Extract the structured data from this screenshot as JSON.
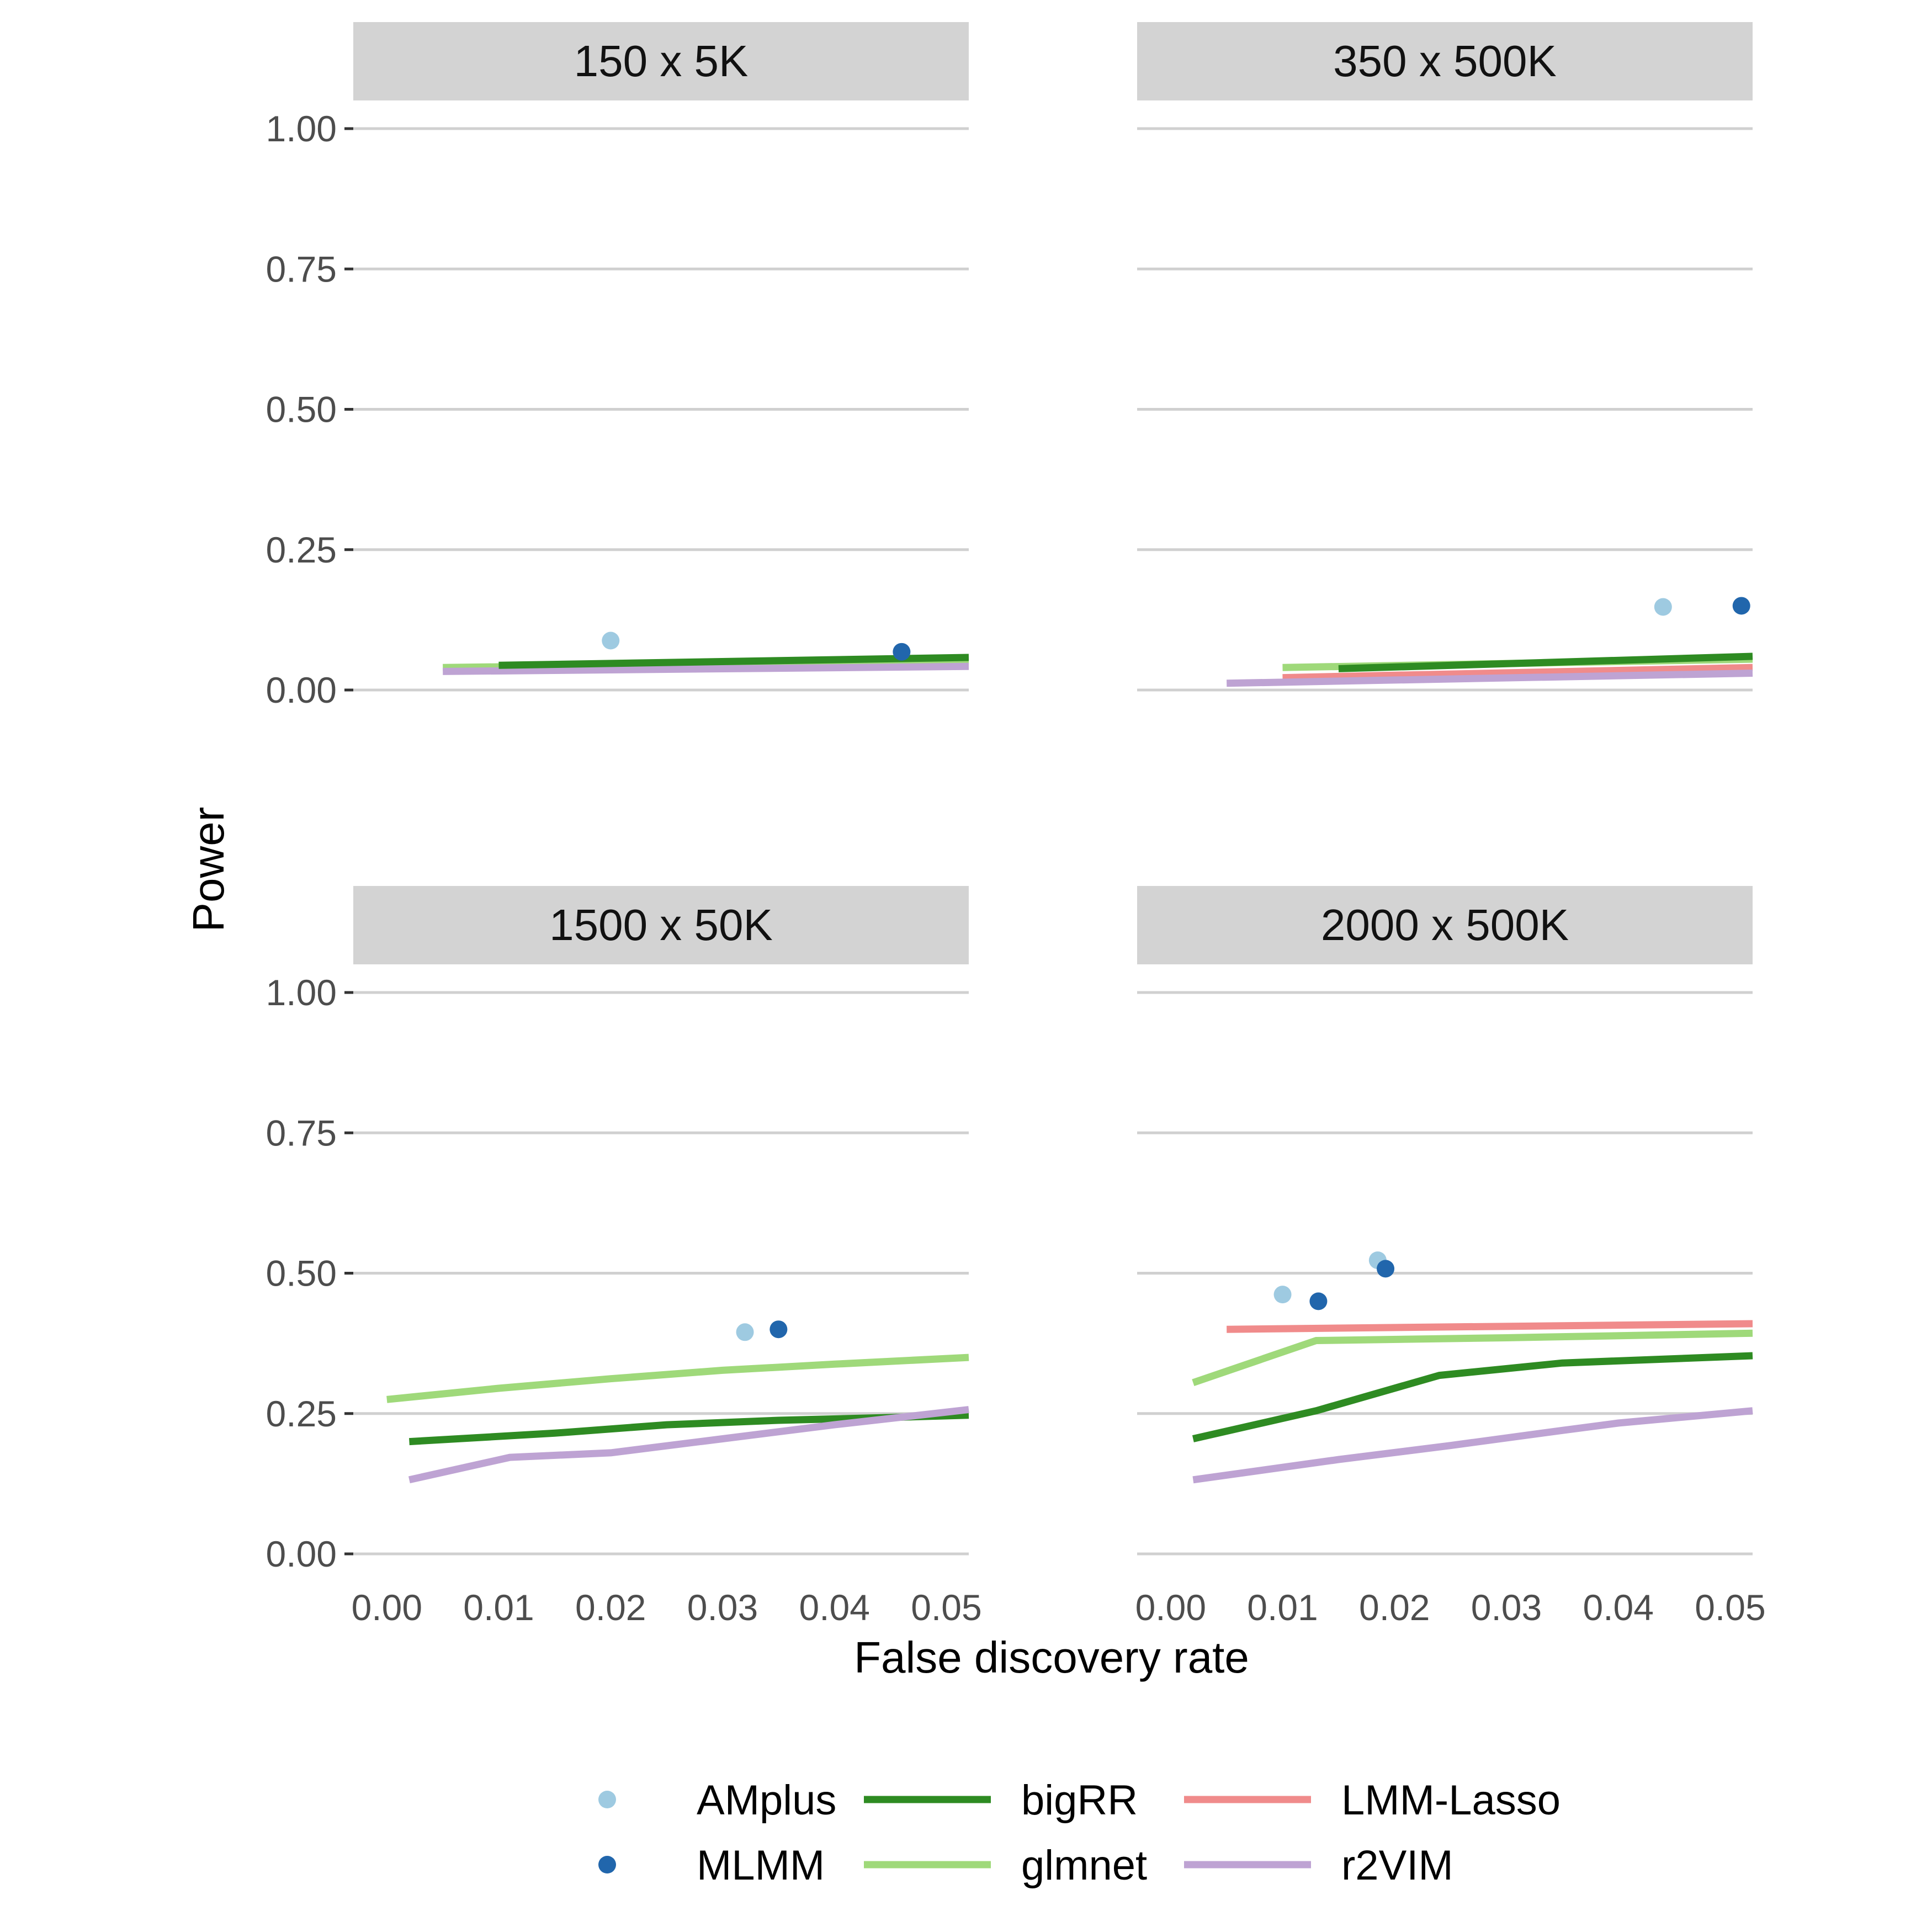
{
  "figure": {
    "ylabel": "Power",
    "xlabel": "False discovery rate"
  },
  "chart_data": {
    "type": "line",
    "xlim": [
      -0.003,
      0.052
    ],
    "ylim": [
      -0.05,
      1.05
    ],
    "x_ticks": [
      0.0,
      0.01,
      0.02,
      0.03,
      0.04,
      0.05
    ],
    "x_tick_labels": [
      "0.00",
      "0.01",
      "0.02",
      "0.03",
      "0.04",
      "0.05"
    ],
    "y_ticks": [
      0.0,
      0.25,
      0.5,
      0.75,
      1.0
    ],
    "y_tick_labels": [
      "0.00",
      "0.25",
      "0.50",
      "0.75",
      "1.00"
    ],
    "grid": true,
    "legend_position": "bottom",
    "colors": {
      "AMplus": "#9ecae1",
      "MLMM": "#2166ac",
      "bigRR": "#2e8b22",
      "glmnet": "#9fd97a",
      "LMM-Lasso": "#f08b8b",
      "r2VIM": "#bea3d3"
    },
    "legend": [
      {
        "name": "AMplus",
        "kind": "point"
      },
      {
        "name": "MLMM",
        "kind": "point"
      },
      {
        "name": "bigRR",
        "kind": "line"
      },
      {
        "name": "glmnet",
        "kind": "line"
      },
      {
        "name": "LMM-Lasso",
        "kind": "line"
      },
      {
        "name": "r2VIM",
        "kind": "line"
      }
    ],
    "panels": [
      {
        "title": "150 x 5K",
        "series": [
          {
            "name": "glmnet",
            "x": [
              0.005,
              0.052
            ],
            "y": [
              0.04,
              0.052
            ]
          },
          {
            "name": "r2VIM",
            "x": [
              0.005,
              0.052
            ],
            "y": [
              0.033,
              0.042
            ]
          },
          {
            "name": "bigRR",
            "x": [
              0.01,
              0.052
            ],
            "y": [
              0.044,
              0.058
            ]
          }
        ],
        "points": [
          {
            "name": "AMplus",
            "x": 0.02,
            "y": 0.088
          },
          {
            "name": "MLMM",
            "x": 0.046,
            "y": 0.068
          }
        ]
      },
      {
        "title": "350 x 500K",
        "series": [
          {
            "name": "glmnet",
            "x": [
              0.01,
              0.052
            ],
            "y": [
              0.04,
              0.055
            ]
          },
          {
            "name": "LMM-Lasso",
            "x": [
              0.01,
              0.052
            ],
            "y": [
              0.022,
              0.04
            ]
          },
          {
            "name": "r2VIM",
            "x": [
              0.005,
              0.052
            ],
            "y": [
              0.012,
              0.03
            ]
          },
          {
            "name": "bigRR",
            "x": [
              0.015,
              0.052
            ],
            "y": [
              0.038,
              0.06
            ]
          }
        ],
        "points": [
          {
            "name": "AMplus",
            "x": 0.044,
            "y": 0.148
          },
          {
            "name": "MLMM",
            "x": 0.051,
            "y": 0.15
          }
        ]
      },
      {
        "title": "1500 x 50K",
        "series": [
          {
            "name": "glmnet",
            "x": [
              0.0,
              0.01,
              0.02,
              0.03,
              0.04,
              0.052
            ],
            "y": [
              0.275,
              0.295,
              0.312,
              0.327,
              0.338,
              0.35
            ]
          },
          {
            "name": "bigRR",
            "x": [
              0.002,
              0.015,
              0.025,
              0.035,
              0.045,
              0.052
            ],
            "y": [
              0.2,
              0.215,
              0.23,
              0.238,
              0.243,
              0.247
            ]
          },
          {
            "name": "r2VIM",
            "x": [
              0.002,
              0.011,
              0.02,
              0.03,
              0.04,
              0.052
            ],
            "y": [
              0.132,
              0.172,
              0.18,
              0.205,
              0.23,
              0.257
            ]
          }
        ],
        "points": [
          {
            "name": "AMplus",
            "x": 0.032,
            "y": 0.395
          },
          {
            "name": "MLMM",
            "x": 0.035,
            "y": 0.4
          }
        ]
      },
      {
        "title": "2000 x 500K",
        "series": [
          {
            "name": "LMM-Lasso",
            "x": [
              0.005,
              0.052
            ],
            "y": [
              0.4,
              0.41
            ]
          },
          {
            "name": "glmnet",
            "x": [
              0.002,
              0.013,
              0.03,
              0.052
            ],
            "y": [
              0.305,
              0.38,
              0.385,
              0.393
            ]
          },
          {
            "name": "bigRR",
            "x": [
              0.002,
              0.013,
              0.024,
              0.035,
              0.052
            ],
            "y": [
              0.205,
              0.255,
              0.318,
              0.34,
              0.353
            ]
          },
          {
            "name": "r2VIM",
            "x": [
              0.002,
              0.015,
              0.025,
              0.035,
              0.04,
              0.052
            ],
            "y": [
              0.132,
              0.168,
              0.193,
              0.22,
              0.233,
              0.255
            ]
          }
        ],
        "points": [
          {
            "name": "AMplus",
            "x": 0.01,
            "y": 0.462
          },
          {
            "name": "AMplus",
            "x": 0.0185,
            "y": 0.523
          },
          {
            "name": "MLMM",
            "x": 0.0132,
            "y": 0.45
          },
          {
            "name": "MLMM",
            "x": 0.0192,
            "y": 0.508
          }
        ]
      }
    ]
  }
}
